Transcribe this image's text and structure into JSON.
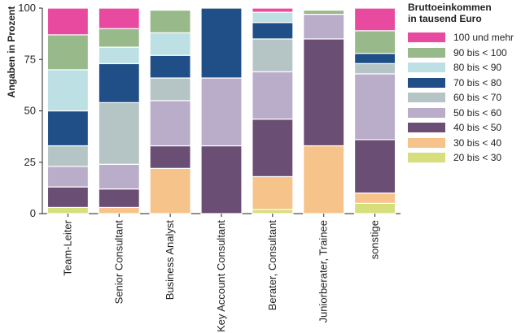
{
  "chart_data": {
    "type": "bar",
    "stacked": true,
    "ylabel": "Angaben in Prozent",
    "ylim": [
      0,
      100
    ],
    "yticks": [
      0,
      25,
      50,
      75,
      100
    ],
    "legend_title": [
      "Bruttoeinkommen",
      "in tausend Euro"
    ],
    "legend_position": "right",
    "categories": [
      "Team-Leiter",
      "Senior Consultant",
      "Business Analyst",
      "Key Account Consultant",
      "Berater, Consultant",
      "Juniorberater, Trainee",
      "sonstige"
    ],
    "series": [
      {
        "name": "20 bis < 30",
        "color": "#d6df7c",
        "values": [
          3,
          0,
          0,
          0,
          2,
          0,
          5
        ]
      },
      {
        "name": "30 bis < 40",
        "color": "#f6c38a",
        "values": [
          0,
          3,
          22,
          0,
          16,
          33,
          5
        ]
      },
      {
        "name": "40 bis < 50",
        "color": "#6b4e74",
        "values": [
          10,
          9,
          11,
          33,
          28,
          52,
          26
        ]
      },
      {
        "name": "50 bis < 60",
        "color": "#b9adc9",
        "values": [
          10,
          12,
          22,
          33,
          23,
          12,
          32
        ]
      },
      {
        "name": "60 bis < 70",
        "color": "#b5c5c5",
        "values": [
          10,
          30,
          11,
          0,
          16,
          0,
          5
        ]
      },
      {
        "name": "70 bis < 80",
        "color": "#1f4f86",
        "values": [
          17,
          19,
          11,
          34,
          8,
          0,
          5
        ]
      },
      {
        "name": "80 bis < 90",
        "color": "#bde0e5",
        "values": [
          20,
          8,
          11,
          0,
          5,
          0,
          0
        ]
      },
      {
        "name": "90 bis < 100",
        "color": "#98b98a",
        "values": [
          17,
          9,
          11,
          0,
          0,
          2,
          11
        ]
      },
      {
        "name": "100 und mehr",
        "color": "#e84a9f",
        "values": [
          13,
          10,
          0,
          0,
          2,
          0,
          11
        ]
      }
    ]
  }
}
